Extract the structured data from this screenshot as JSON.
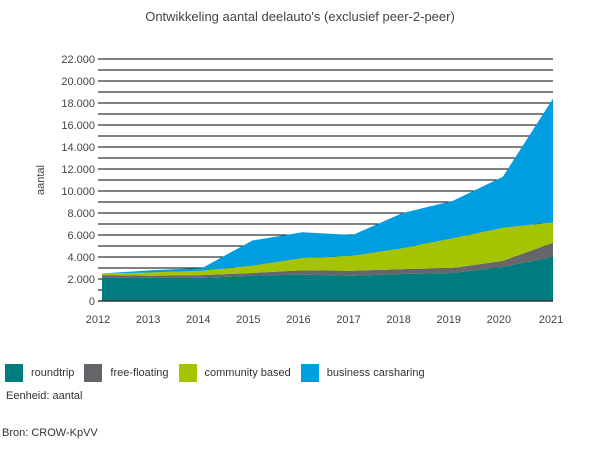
{
  "chart_data": {
    "type": "area",
    "stacked": true,
    "title": "Ontwikkeling aantal deelauto's (exclusief peer-2-peer)",
    "xlabel": "",
    "ylabel": "aantal",
    "x": [
      "2012",
      "2013",
      "2014",
      "2015",
      "2016",
      "2017",
      "2018",
      "2019",
      "2020",
      "2021"
    ],
    "ylim": [
      0,
      22000
    ],
    "yticks": [
      0,
      2000,
      4000,
      6000,
      8000,
      10000,
      12000,
      14000,
      16000,
      18000,
      20000,
      22000
    ],
    "ytick_labels": [
      "0",
      "2.000",
      "4.000",
      "6.000",
      "8.000",
      "10.000",
      "12.000",
      "14.000",
      "16.000",
      "18.000",
      "20.000",
      "22.000"
    ],
    "minor_grid_step": 1000,
    "grid": true,
    "legend_position": "bottom-left",
    "series": [
      {
        "name": "roundtrip",
        "color": "#007C7E",
        "values": [
          2100,
          2100,
          2100,
          2300,
          2400,
          2300,
          2450,
          2550,
          3100,
          4000
        ]
      },
      {
        "name": "free-floating",
        "color": "#65666A",
        "values": [
          250,
          200,
          250,
          250,
          400,
          450,
          450,
          450,
          550,
          1300
        ]
      },
      {
        "name": "community based",
        "color": "#A5C400",
        "values": [
          150,
          300,
          400,
          650,
          1100,
          1350,
          1900,
          2700,
          3000,
          1850
        ]
      },
      {
        "name": "business carsharing",
        "color": "#009EE0",
        "values": [
          0,
          200,
          250,
          2300,
          2350,
          1900,
          3200,
          3400,
          4650,
          11250
        ]
      }
    ]
  },
  "footer": {
    "unit": "Eenheid: aantal",
    "source": "Bron: CROW-KpVV"
  }
}
